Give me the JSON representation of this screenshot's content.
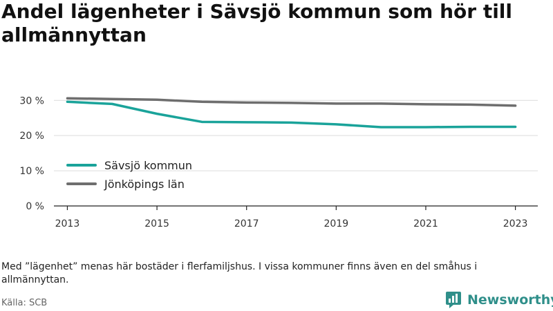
{
  "page": {
    "title": "Andel lägenheter i Sävsjö kommun som hör till allmännyttan",
    "note": "Med ”lägenhet” menas här bostäder i flerfamiljshus. I vissa kommuner finns även en del småhus i allmännyttan.",
    "source": "Källa: SCB",
    "brand": "Newsworthy",
    "brand_icon": "newsworthy-logo-icon"
  },
  "chart_data": {
    "type": "line",
    "title": "Andel lägenheter i Sävsjö kommun som hör till allmännyttan",
    "xlabel": "",
    "ylabel": "",
    "x": [
      2013,
      2014,
      2015,
      2016,
      2017,
      2018,
      2019,
      2020,
      2021,
      2022,
      2023
    ],
    "xticks": [
      "2013",
      "2015",
      "2017",
      "2019",
      "2021",
      "2023"
    ],
    "yticks": [
      "0 %",
      "10 %",
      "20 %",
      "30 %"
    ],
    "ylim": [
      0,
      33
    ],
    "xlim": [
      2012.7,
      2023.5
    ],
    "grid": true,
    "legend_position": "lower-left",
    "series": [
      {
        "name": "Sävsjö kommun",
        "color": "#1aa39a",
        "values": [
          29.6,
          29.0,
          26.2,
          23.9,
          23.8,
          23.7,
          23.2,
          22.4,
          22.4,
          22.5,
          22.5
        ]
      },
      {
        "name": "Jönköpings län",
        "color": "#6e6e6e",
        "values": [
          30.6,
          30.4,
          30.2,
          29.6,
          29.4,
          29.3,
          29.1,
          29.1,
          28.9,
          28.8,
          28.5
        ]
      }
    ]
  }
}
